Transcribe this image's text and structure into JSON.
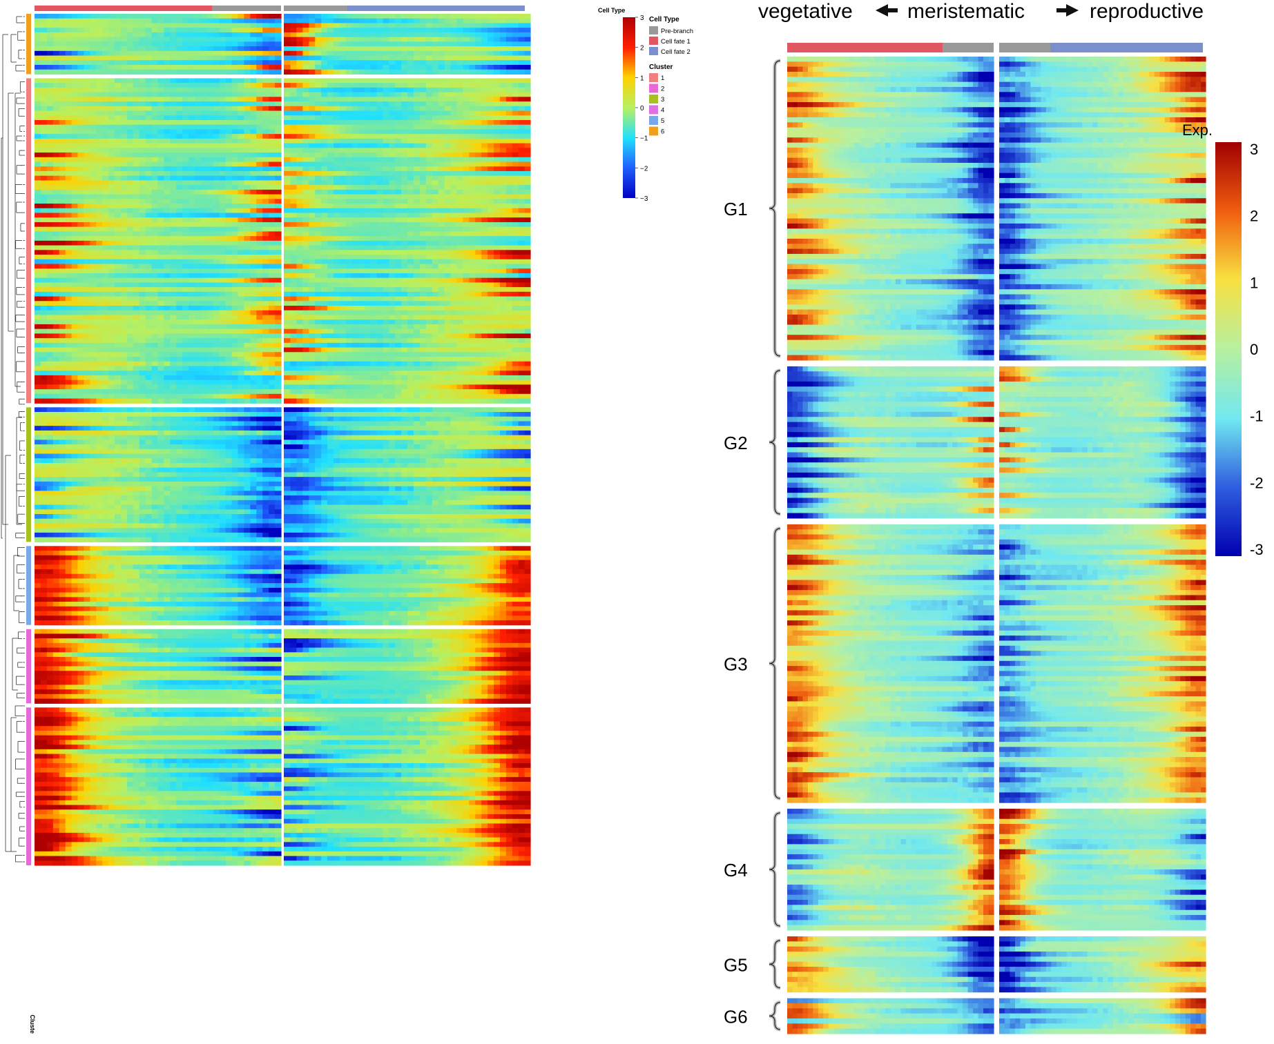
{
  "chart_data": [
    {
      "type": "heatmap",
      "panel": "left",
      "columns": 2,
      "column_annotation_title": "Cell Type",
      "legend": {
        "cell_type_title": "Cell Type",
        "cell_types": [
          {
            "label": "Pre-branch",
            "color": "#999999"
          },
          {
            "label": "Cell fate 1",
            "color": "#E15862"
          },
          {
            "label": "Cell fate 2",
            "color": "#7A8FCC"
          }
        ],
        "cluster_title": "Cluster",
        "clusters": [
          {
            "label": "1",
            "color": "#F08080"
          },
          {
            "label": "2",
            "color": "#E868D8"
          },
          {
            "label": "3",
            "color": "#A8C020"
          },
          {
            "label": "4",
            "color": "#E070E0"
          },
          {
            "label": "5",
            "color": "#78A8E8"
          },
          {
            "label": "6",
            "color": "#F0A020"
          }
        ],
        "scale_ticks": [
          "3",
          "2",
          "1",
          "0",
          "−1",
          "−2",
          "−3"
        ],
        "scale_range": [
          -3,
          3
        ]
      },
      "row_axis_label": "Cluste",
      "row_blocks": [
        {
          "cluster": "6",
          "rows": 13
        },
        {
          "cluster": "1",
          "rows": 70
        },
        {
          "cluster": "3",
          "rows": 29
        },
        {
          "cluster": "5",
          "rows": 17
        },
        {
          "cluster": "2",
          "rows": 16
        },
        {
          "cluster": "2",
          "rows": 34
        }
      ]
    },
    {
      "type": "heatmap",
      "panel": "right",
      "title_parts": [
        "vegetative",
        "meristematic",
        "reproductive"
      ],
      "legend_title": "Exp.",
      "scale_ticks": [
        "3",
        "2",
        "1",
        "0",
        "-1",
        "-2",
        "-3"
      ],
      "scale_range": [
        -3,
        3
      ],
      "groups": [
        {
          "label": "G1",
          "rows": 60
        },
        {
          "label": "G2",
          "rows": 30
        },
        {
          "label": "G3",
          "rows": 55
        },
        {
          "label": "G4",
          "rows": 24
        },
        {
          "label": "G5",
          "rows": 11
        },
        {
          "label": "G6",
          "rows": 7
        }
      ]
    }
  ],
  "colors": {
    "pre_branch": "#999999",
    "fate1": "#E15862",
    "fate2": "#7A8FCC",
    "group_bracket": "#BDBDBD",
    "separator": "#FFFFFF"
  }
}
